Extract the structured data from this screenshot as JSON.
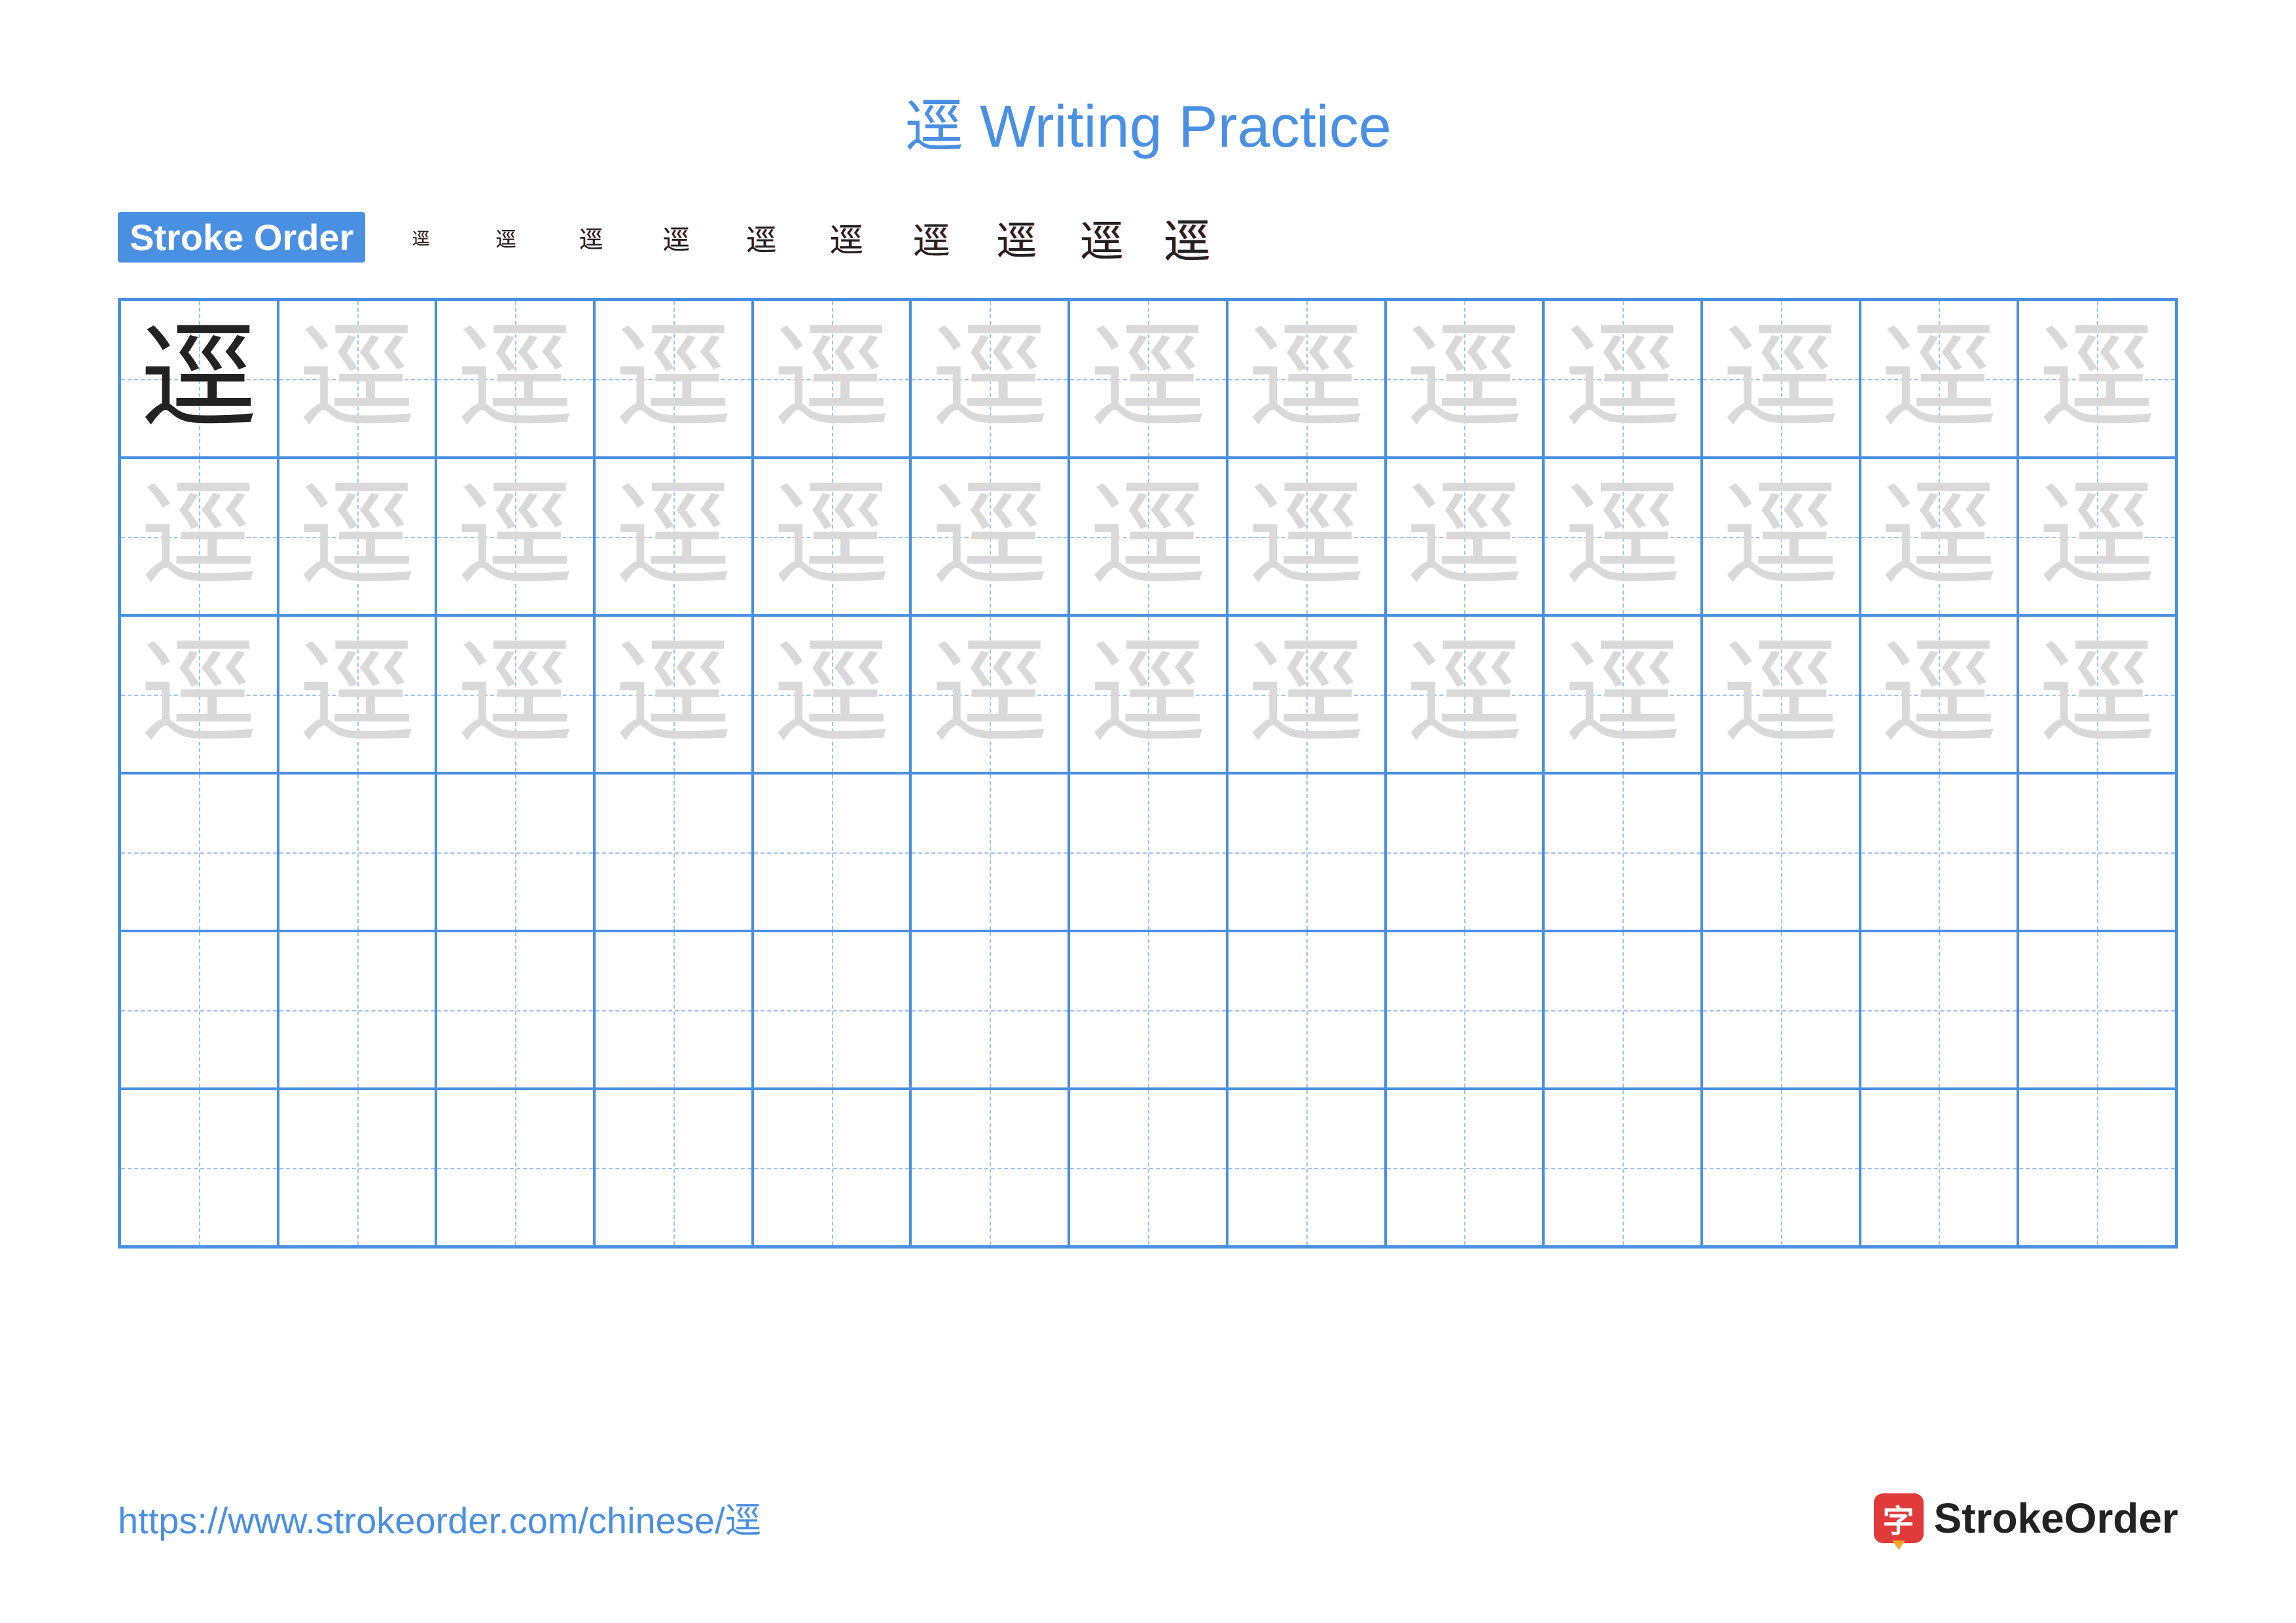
{
  "title": {
    "character": "逕",
    "suffix": "Writing Practice"
  },
  "colors": {
    "accent": "#4a90e2",
    "grid_border": "#4a90e2",
    "guide_dash": "#9cc3f0",
    "trace_light": "#d9d9d9",
    "example_dark": "#222222",
    "stroke_highlight": "#e03a3a",
    "logo_bg": "#e03a3a",
    "logo_pencil": "#f5a623",
    "url": "#4a90e2",
    "background": "#ffffff"
  },
  "stroke_order": {
    "label": "Stroke Order",
    "character": "逕",
    "count": 10
  },
  "grid": {
    "cols": 13,
    "rows": 6,
    "example_rows": 1,
    "trace_rows": 3,
    "character": "逕",
    "example_color": "#222222",
    "trace_color": "#d9d9d9",
    "first_cell_dark": true
  },
  "footer": {
    "url": "https://www.strokeorder.com/chinese/逕",
    "logo_char": "字",
    "logo_text": "StrokeOrder"
  },
  "typography": {
    "title_fontsize": 90,
    "label_fontsize": 56,
    "step_fontsize": 72,
    "cell_fontsize": 180,
    "url_fontsize": 56,
    "logo_fontsize": 64
  }
}
